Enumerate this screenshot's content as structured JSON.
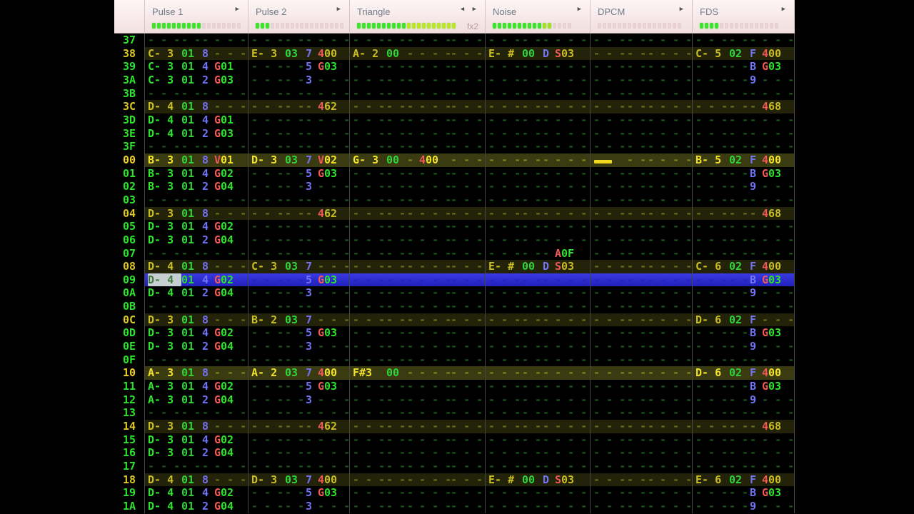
{
  "header": {
    "channels": [
      {
        "name": "Pulse 1",
        "arrows": "right",
        "meter": {
          "total": 18,
          "filled": 10
        }
      },
      {
        "name": "Pulse 2",
        "arrows": "right",
        "meter": {
          "total": 18,
          "filled": 3
        }
      },
      {
        "name": "Triangle",
        "arrows": "both",
        "fx_label": "fx2",
        "meter": {
          "total": 20,
          "filled": 20,
          "tint_from": 10,
          "tint_color": "#bce624"
        }
      },
      {
        "name": "Noise",
        "arrows": "right",
        "meter": {
          "total": 16,
          "filled": 12,
          "tint_from": 10,
          "tint_color": "#a6e026"
        }
      },
      {
        "name": "DPCM",
        "arrows": "right",
        "meter": {
          "total": 17,
          "filled": 0
        }
      },
      {
        "name": "FDS",
        "arrows": "right",
        "meter": {
          "total": 16,
          "filled": 4
        }
      }
    ]
  },
  "colors": {
    "note_green": "#2be42b",
    "beat_yellow": "#c9bd22",
    "measure_yellow": "#f2e22a",
    "instrument_green": "#2ed43a",
    "volume_blue": "#7272f5",
    "effect_red": "#f25858",
    "selection_blue": "#2c2cd0",
    "beat_row_bg": "#232309",
    "measure_row_bg": "#3b3b12",
    "header_bg": "#f7e9e9",
    "meter_green": "#3ce42c",
    "halt_yellow": "#efda1f"
  },
  "rows": [
    {
      "num": "37",
      "type": "normal",
      "cells": [
        {},
        {},
        {},
        {},
        {},
        {}
      ]
    },
    {
      "num": "38",
      "type": "beat",
      "cells": [
        {
          "note": "C- 3",
          "inst": "01",
          "vol": "8"
        },
        {
          "note": "E- 3",
          "inst": "03",
          "vol": "7",
          "fx": {
            "l": "4",
            "p": "00"
          }
        },
        {
          "note": "A- 2",
          "inst": "00"
        },
        {
          "note": "E- #",
          "inst": "00",
          "vol": "D",
          "fx": {
            "l": "S",
            "p": "03"
          }
        },
        {},
        {
          "note": "C- 5",
          "inst": "02",
          "vol": "F",
          "fx": {
            "l": "4",
            "p": "00"
          }
        }
      ]
    },
    {
      "num": "39",
      "type": "normal",
      "cells": [
        {
          "note": "C- 3",
          "inst": "01",
          "vol": "4",
          "fx": {
            "l": "G",
            "p": "01"
          }
        },
        {
          "vol": "5",
          "fx": {
            "l": "G",
            "p": "03"
          }
        },
        {},
        {},
        {},
        {
          "vol": "B",
          "fx": {
            "l": "G",
            "p": "03"
          }
        }
      ]
    },
    {
      "num": "3A",
      "type": "normal",
      "cells": [
        {
          "note": "C- 3",
          "inst": "01",
          "vol": "2",
          "fx": {
            "l": "G",
            "p": "03"
          }
        },
        {
          "vol": "3"
        },
        {},
        {},
        {},
        {
          "vol": "9"
        }
      ]
    },
    {
      "num": "3B",
      "type": "normal",
      "cells": [
        {},
        {},
        {},
        {},
        {},
        {}
      ]
    },
    {
      "num": "3C",
      "type": "beat",
      "cells": [
        {
          "note": "D- 4",
          "inst": "01",
          "vol": "8"
        },
        {
          "fx": {
            "l": "4",
            "p": "62"
          }
        },
        {},
        {},
        {},
        {
          "fx": {
            "l": "4",
            "p": "68"
          }
        }
      ]
    },
    {
      "num": "3D",
      "type": "normal",
      "cells": [
        {
          "note": "D- 4",
          "inst": "01",
          "vol": "4",
          "fx": {
            "l": "G",
            "p": "01"
          }
        },
        {},
        {},
        {},
        {},
        {}
      ]
    },
    {
      "num": "3E",
      "type": "normal",
      "cells": [
        {
          "note": "D- 4",
          "inst": "01",
          "vol": "2",
          "fx": {
            "l": "G",
            "p": "03"
          }
        },
        {},
        {},
        {},
        {},
        {}
      ]
    },
    {
      "num": "3F",
      "type": "normal",
      "cells": [
        {},
        {},
        {},
        {},
        {},
        {}
      ]
    },
    {
      "num": "00",
      "type": "measure",
      "cells": [
        {
          "note": "B- 3",
          "inst": "01",
          "vol": "8",
          "fx": {
            "l": "V",
            "p": "01"
          }
        },
        {
          "note": "D- 3",
          "inst": "03",
          "vol": "7",
          "fx": {
            "l": "V",
            "p": "02"
          }
        },
        {
          "note": "G- 3",
          "inst": "00",
          "fx": {
            "l": "4",
            "p": "00"
          }
        },
        {},
        {
          "halt": true
        },
        {
          "note": "B- 5",
          "inst": "02",
          "vol": "F",
          "fx": {
            "l": "4",
            "p": "00"
          }
        }
      ]
    },
    {
      "num": "01",
      "type": "normal",
      "cells": [
        {
          "note": "B- 3",
          "inst": "01",
          "vol": "4",
          "fx": {
            "l": "G",
            "p": "02"
          }
        },
        {
          "vol": "5",
          "fx": {
            "l": "G",
            "p": "03"
          }
        },
        {},
        {},
        {},
        {
          "vol": "B",
          "fx": {
            "l": "G",
            "p": "03"
          }
        }
      ]
    },
    {
      "num": "02",
      "type": "normal",
      "cells": [
        {
          "note": "B- 3",
          "inst": "01",
          "vol": "2",
          "fx": {
            "l": "G",
            "p": "04"
          }
        },
        {
          "vol": "3"
        },
        {},
        {},
        {},
        {
          "vol": "9"
        }
      ]
    },
    {
      "num": "03",
      "type": "normal",
      "cells": [
        {},
        {},
        {},
        {},
        {},
        {}
      ]
    },
    {
      "num": "04",
      "type": "beat",
      "cells": [
        {
          "note": "D- 3",
          "inst": "01",
          "vol": "8"
        },
        {
          "fx": {
            "l": "4",
            "p": "62"
          }
        },
        {},
        {},
        {},
        {
          "fx": {
            "l": "4",
            "p": "68"
          }
        }
      ]
    },
    {
      "num": "05",
      "type": "normal",
      "cells": [
        {
          "note": "D- 3",
          "inst": "01",
          "vol": "4",
          "fx": {
            "l": "G",
            "p": "02"
          }
        },
        {},
        {},
        {},
        {},
        {}
      ]
    },
    {
      "num": "06",
      "type": "normal",
      "cells": [
        {
          "note": "D- 3",
          "inst": "01",
          "vol": "2",
          "fx": {
            "l": "G",
            "p": "04"
          }
        },
        {},
        {},
        {},
        {},
        {}
      ]
    },
    {
      "num": "07",
      "type": "normal",
      "cells": [
        {},
        {},
        {},
        {
          "fx": {
            "l": "A",
            "p": "0F"
          }
        },
        {},
        {}
      ]
    },
    {
      "num": "08",
      "type": "beat",
      "cells": [
        {
          "note": "D- 4",
          "inst": "01",
          "vol": "8"
        },
        {
          "note": "C- 3",
          "inst": "03",
          "vol": "7"
        },
        {},
        {
          "note": "E- #",
          "inst": "00",
          "vol": "D",
          "fx": {
            "l": "S",
            "p": "03"
          }
        },
        {},
        {
          "note": "C- 6",
          "inst": "02",
          "vol": "F",
          "fx": {
            "l": "4",
            "p": "00"
          }
        }
      ]
    },
    {
      "num": "09",
      "type": "cursor",
      "cells": [
        {
          "note": "D- 4",
          "inst": "01",
          "vol": "4",
          "fx": {
            "l": "G",
            "p": "02"
          },
          "cursor": true
        },
        {
          "vol": "5",
          "fx": {
            "l": "G",
            "p": "03"
          }
        },
        {},
        {},
        {},
        {
          "vol": "B",
          "fx": {
            "l": "G",
            "p": "03"
          }
        }
      ]
    },
    {
      "num": "0A",
      "type": "normal",
      "cells": [
        {
          "note": "D- 4",
          "inst": "01",
          "vol": "2",
          "fx": {
            "l": "G",
            "p": "04"
          }
        },
        {
          "vol": "3"
        },
        {},
        {},
        {},
        {
          "vol": "9"
        }
      ]
    },
    {
      "num": "0B",
      "type": "normal",
      "cells": [
        {},
        {},
        {},
        {},
        {},
        {}
      ]
    },
    {
      "num": "0C",
      "type": "beat",
      "cells": [
        {
          "note": "D- 3",
          "inst": "01",
          "vol": "8"
        },
        {
          "note": "B- 2",
          "inst": "03",
          "vol": "7"
        },
        {},
        {},
        {},
        {
          "note": "D- 6",
          "inst": "02",
          "vol": "F"
        }
      ]
    },
    {
      "num": "0D",
      "type": "normal",
      "cells": [
        {
          "note": "D- 3",
          "inst": "01",
          "vol": "4",
          "fx": {
            "l": "G",
            "p": "02"
          }
        },
        {
          "vol": "5",
          "fx": {
            "l": "G",
            "p": "03"
          }
        },
        {},
        {},
        {},
        {
          "vol": "B",
          "fx": {
            "l": "G",
            "p": "03"
          }
        }
      ]
    },
    {
      "num": "0E",
      "type": "normal",
      "cells": [
        {
          "note": "D- 3",
          "inst": "01",
          "vol": "2",
          "fx": {
            "l": "G",
            "p": "04"
          }
        },
        {
          "vol": "3"
        },
        {},
        {},
        {},
        {
          "vol": "9"
        }
      ]
    },
    {
      "num": "0F",
      "type": "normal",
      "cells": [
        {},
        {},
        {},
        {},
        {},
        {}
      ]
    },
    {
      "num": "10",
      "type": "measure",
      "cells": [
        {
          "note": "A- 3",
          "inst": "01",
          "vol": "8"
        },
        {
          "note": "A- 2",
          "inst": "03",
          "vol": "7",
          "fx": {
            "l": "4",
            "p": "00"
          }
        },
        {
          "note": "F#3",
          "inst": "00"
        },
        {},
        {},
        {
          "note": "D- 6",
          "inst": "02",
          "vol": "F",
          "fx": {
            "l": "4",
            "p": "00"
          }
        }
      ]
    },
    {
      "num": "11",
      "type": "normal",
      "cells": [
        {
          "note": "A- 3",
          "inst": "01",
          "vol": "4",
          "fx": {
            "l": "G",
            "p": "02"
          }
        },
        {
          "vol": "5",
          "fx": {
            "l": "G",
            "p": "03"
          }
        },
        {},
        {},
        {},
        {
          "vol": "B",
          "fx": {
            "l": "G",
            "p": "03"
          }
        }
      ]
    },
    {
      "num": "12",
      "type": "normal",
      "cells": [
        {
          "note": "A- 3",
          "inst": "01",
          "vol": "2",
          "fx": {
            "l": "G",
            "p": "04"
          }
        },
        {
          "vol": "3"
        },
        {},
        {},
        {},
        {
          "vol": "9"
        }
      ]
    },
    {
      "num": "13",
      "type": "normal",
      "cells": [
        {},
        {},
        {},
        {},
        {},
        {}
      ]
    },
    {
      "num": "14",
      "type": "beat",
      "cells": [
        {
          "note": "D- 3",
          "inst": "01",
          "vol": "8"
        },
        {
          "fx": {
            "l": "4",
            "p": "62"
          }
        },
        {},
        {},
        {},
        {
          "fx": {
            "l": "4",
            "p": "68"
          }
        }
      ]
    },
    {
      "num": "15",
      "type": "normal",
      "cells": [
        {
          "note": "D- 3",
          "inst": "01",
          "vol": "4",
          "fx": {
            "l": "G",
            "p": "02"
          }
        },
        {},
        {},
        {},
        {},
        {}
      ]
    },
    {
      "num": "16",
      "type": "normal",
      "cells": [
        {
          "note": "D- 3",
          "inst": "01",
          "vol": "2",
          "fx": {
            "l": "G",
            "p": "04"
          }
        },
        {},
        {},
        {},
        {},
        {}
      ]
    },
    {
      "num": "17",
      "type": "normal",
      "cells": [
        {},
        {},
        {},
        {},
        {},
        {}
      ]
    },
    {
      "num": "18",
      "type": "beat",
      "cells": [
        {
          "note": "D- 4",
          "inst": "01",
          "vol": "8"
        },
        {
          "note": "D- 3",
          "inst": "03",
          "vol": "7",
          "fx": {
            "l": "4",
            "p": "00"
          }
        },
        {},
        {
          "note": "E- #",
          "inst": "00",
          "vol": "D",
          "fx": {
            "l": "S",
            "p": "03"
          }
        },
        {},
        {
          "note": "E- 6",
          "inst": "02",
          "vol": "F",
          "fx": {
            "l": "4",
            "p": "00"
          }
        }
      ]
    },
    {
      "num": "19",
      "type": "normal",
      "cells": [
        {
          "note": "D- 4",
          "inst": "01",
          "vol": "4",
          "fx": {
            "l": "G",
            "p": "02"
          }
        },
        {
          "vol": "5",
          "fx": {
            "l": "G",
            "p": "03"
          }
        },
        {},
        {},
        {},
        {
          "vol": "B",
          "fx": {
            "l": "G",
            "p": "03"
          }
        }
      ]
    },
    {
      "num": "1A",
      "type": "normal",
      "cells": [
        {
          "note": "D- 4",
          "inst": "01",
          "vol": "2",
          "fx": {
            "l": "G",
            "p": "04"
          }
        },
        {
          "vol": "3"
        },
        {},
        {},
        {},
        {
          "vol": "9"
        }
      ]
    }
  ]
}
